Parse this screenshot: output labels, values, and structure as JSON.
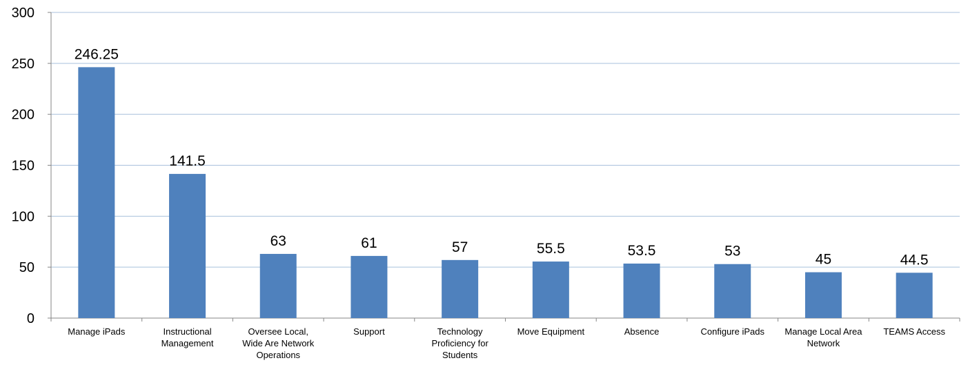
{
  "chart_data": {
    "type": "bar",
    "categories": [
      [
        "Manage iPads"
      ],
      [
        "Instructional",
        "Management"
      ],
      [
        "Oversee Local,",
        "Wide Are Network",
        "Operations"
      ],
      [
        "Support"
      ],
      [
        "Technology",
        "Proficiency for",
        "Students"
      ],
      [
        "Move Equipment"
      ],
      [
        "Absence"
      ],
      [
        "Configure iPads"
      ],
      [
        "Manage Local Area",
        "Network"
      ],
      [
        "TEAMS Access"
      ]
    ],
    "values": [
      246.25,
      141.5,
      63,
      61,
      57,
      55.5,
      53.5,
      53,
      45,
      44.5
    ],
    "data_labels": [
      "246.25",
      "141.5",
      "63",
      "61",
      "57",
      "55.5",
      "53.5",
      "53",
      "45",
      "44.5"
    ],
    "ylim": [
      0,
      300
    ],
    "yticks": [
      0,
      50,
      100,
      150,
      200,
      250,
      300
    ],
    "grid": true,
    "legend": "none",
    "colors": {
      "bar": "#4f81bd",
      "grid": "#a8c0dc",
      "axis": "#868686"
    }
  }
}
